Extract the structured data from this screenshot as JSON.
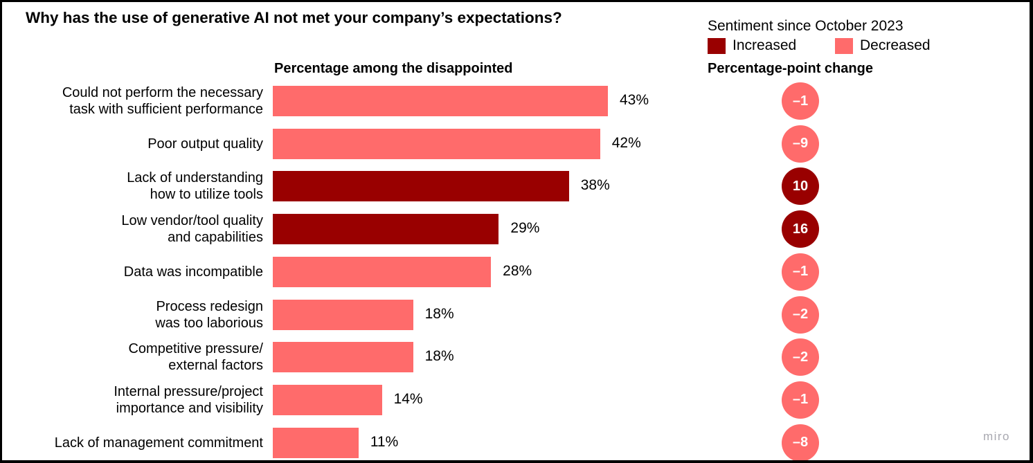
{
  "colors": {
    "increased": "#990000",
    "decreased": "#FF6B6B"
  },
  "chart_data": {
    "type": "bar",
    "orientation": "horizontal",
    "title": "Why has the use of generative AI not met your company’s expectations?",
    "value_header": "Percentage among the disappointed",
    "change_header": "Percentage-point change",
    "legend": {
      "title": "Sentiment since October 2023",
      "items": [
        {
          "label": "Increased",
          "key": "increased"
        },
        {
          "label": "Decreased",
          "key": "decreased"
        }
      ]
    },
    "xlim": [
      0,
      43
    ],
    "categories": [
      "Could not perform the necessary\ntask with sufficient performance",
      "Poor output quality",
      "Lack of understanding\nhow to utilize tools",
      "Low vendor/tool quality\nand capabilities",
      "Data was incompatible",
      "Process redesign\nwas too laborious",
      "Competitive pressure/\nexternal factors",
      "Internal pressure/project\nimportance and visibility",
      "Lack of management commitment"
    ],
    "values": [
      43,
      42,
      38,
      29,
      28,
      18,
      18,
      14,
      11
    ],
    "value_labels": [
      "43%",
      "42%",
      "38%",
      "29%",
      "28%",
      "18%",
      "18%",
      "14%",
      "11%"
    ],
    "changes": [
      -1,
      -9,
      10,
      16,
      -1,
      -2,
      -2,
      -1,
      -8
    ],
    "change_labels": [
      "–1",
      "–9",
      "10",
      "16",
      "–1",
      "–2",
      "–2",
      "–1",
      "–8"
    ],
    "sentiment": [
      "decreased",
      "decreased",
      "increased",
      "increased",
      "decreased",
      "decreased",
      "decreased",
      "decreased",
      "decreased"
    ]
  },
  "watermark": "miro"
}
